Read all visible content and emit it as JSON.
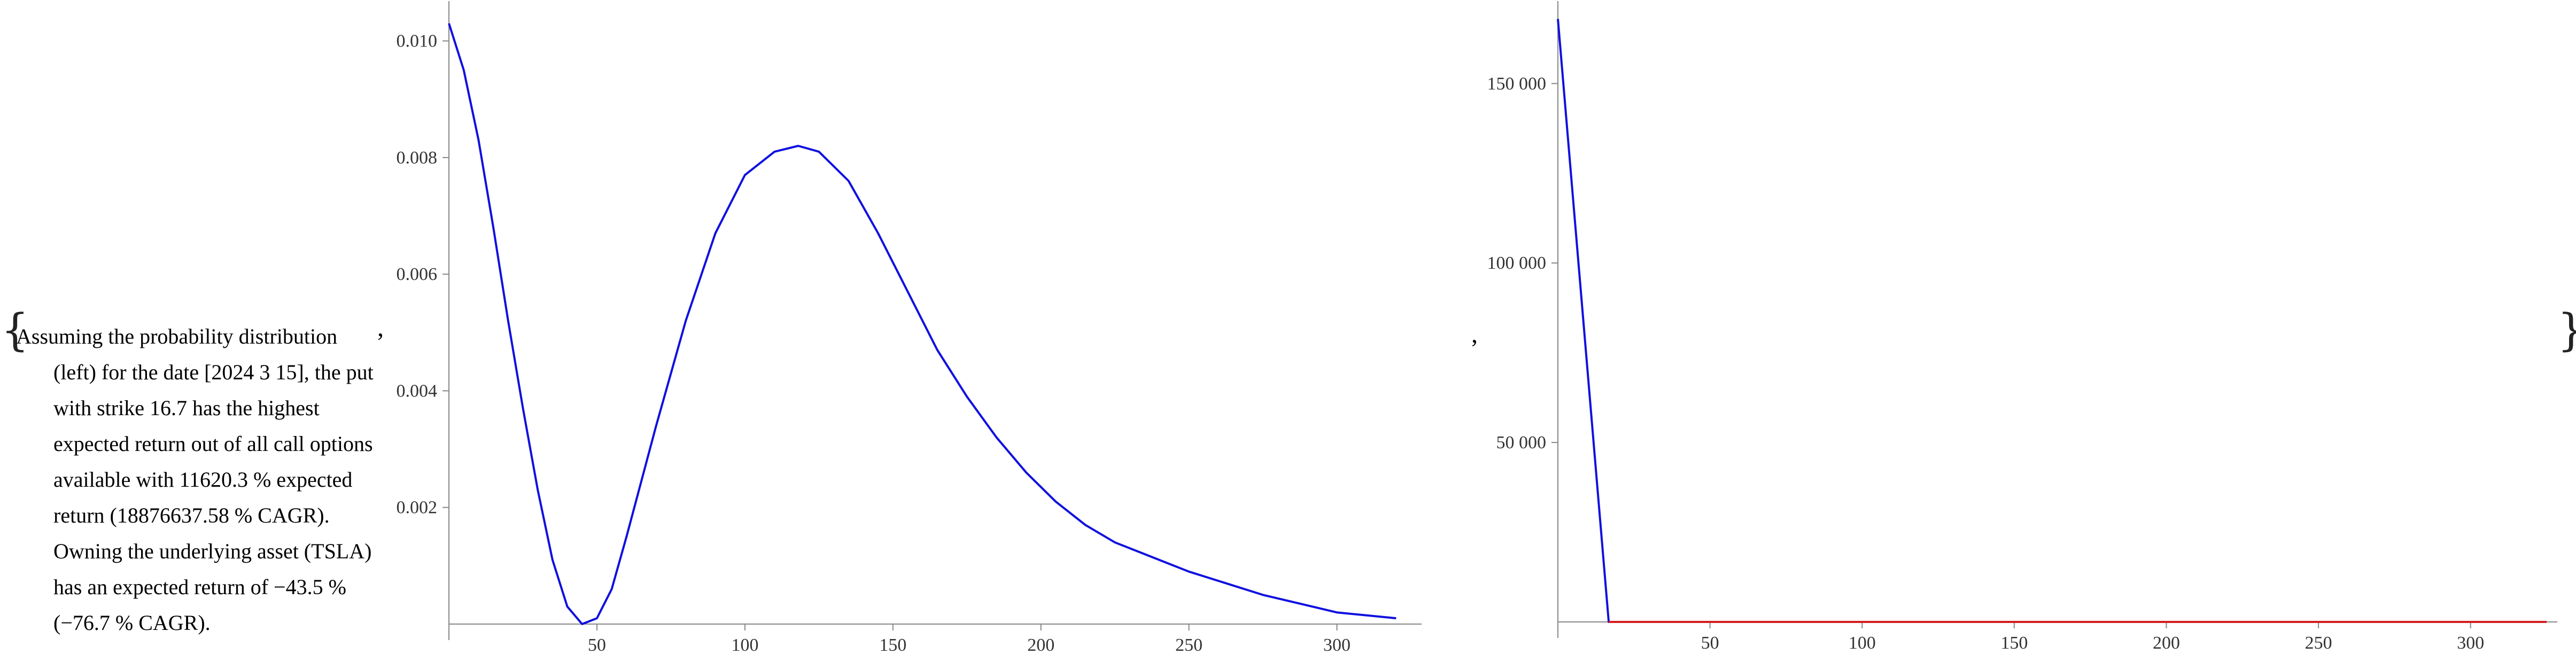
{
  "text": {
    "brace_open": "{",
    "brace_close": "}",
    "separator": ",",
    "description_first_line": "Assuming the probability distribution",
    "description_rest": "(left) for the date [2024 3 15], the put with strike 16.7 has the highest expected return out of all call options available with 11620.3 % expected return (18876637.58 % CAGR). Owning the underlying asset (TSLA) has an expected return of −43.5 % (−76.7 % CAGR)."
  },
  "chart_data": [
    {
      "type": "line",
      "title": "",
      "xlabel": "",
      "ylabel": "",
      "xlim": [
        0,
        325
      ],
      "ylim": [
        0,
        0.0105
      ],
      "x_ticks": [
        50,
        100,
        150,
        200,
        250,
        300
      ],
      "y_ticks": [
        0.002,
        0.004,
        0.006,
        0.008,
        0.01
      ],
      "y_tick_labels": [
        "0.002",
        "0.004",
        "0.006",
        "0.008",
        "0.010"
      ],
      "grid": false,
      "series": [
        {
          "color": "#1010e0",
          "points": [
            [
              0,
              0.0103
            ],
            [
              5,
              0.0095
            ],
            [
              10,
              0.0083
            ],
            [
              15,
              0.0068
            ],
            [
              20,
              0.0052
            ],
            [
              25,
              0.0037
            ],
            [
              30,
              0.0023
            ],
            [
              35,
              0.0011
            ],
            [
              40,
              0.0003
            ],
            [
              45,
              0.0
            ],
            [
              50,
              0.0001
            ],
            [
              55,
              0.0006
            ],
            [
              60,
              0.0015
            ],
            [
              70,
              0.0034
            ],
            [
              80,
              0.0052
            ],
            [
              90,
              0.0067
            ],
            [
              100,
              0.0077
            ],
            [
              110,
              0.0081
            ],
            [
              118,
              0.0082
            ],
            [
              125,
              0.0081
            ],
            [
              135,
              0.0076
            ],
            [
              145,
              0.0067
            ],
            [
              155,
              0.0057
            ],
            [
              165,
              0.0047
            ],
            [
              175,
              0.0039
            ],
            [
              185,
              0.0032
            ],
            [
              195,
              0.0026
            ],
            [
              205,
              0.0021
            ],
            [
              215,
              0.0017
            ],
            [
              225,
              0.0014
            ],
            [
              250,
              0.0009
            ],
            [
              275,
              0.0005
            ],
            [
              300,
              0.0002
            ],
            [
              320,
              0.0001
            ]
          ]
        }
      ]
    },
    {
      "type": "line",
      "title": "",
      "xlabel": "",
      "ylabel": "",
      "xlim": [
        0,
        325
      ],
      "ylim": [
        0,
        170000
      ],
      "x_ticks": [
        50,
        100,
        150,
        200,
        250,
        300
      ],
      "y_ticks": [
        50000,
        100000,
        150000
      ],
      "y_tick_labels": [
        "50 000",
        "100 000",
        "150 000"
      ],
      "grid": false,
      "series": [
        {
          "color": "#1010e0",
          "points": [
            [
              0,
              168000
            ],
            [
              16.7,
              0
            ],
            [
              325,
              0
            ]
          ]
        },
        {
          "color": "#d42020",
          "points": [
            [
              16.7,
              0
            ],
            [
              325,
              0
            ]
          ]
        }
      ]
    }
  ]
}
